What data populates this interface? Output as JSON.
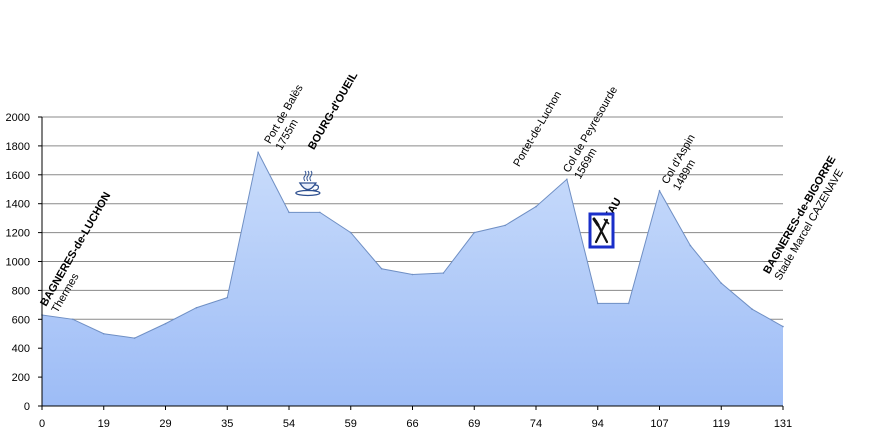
{
  "chart_data": {
    "type": "area",
    "title": "",
    "xlabel": "",
    "ylabel": "",
    "ylim": [
      0,
      2000
    ],
    "y_ticks": [
      "0",
      "200",
      "400",
      "600",
      "800",
      "1000",
      "1200",
      "1400",
      "1600",
      "1800",
      "2000"
    ],
    "x_tick_labels": [
      "0",
      "19",
      "29",
      "35",
      "54",
      "59",
      "66",
      "69",
      "74",
      "94",
      "107",
      "119",
      "131"
    ],
    "grid": "horizontal",
    "legend": "none",
    "fill_color_top": "#c9dcfb",
    "fill_color_bottom": "#9dbcf6",
    "line_color": "#6f8fc4",
    "series": [
      {
        "values": [
          630,
          600,
          500,
          470,
          570,
          680,
          750,
          1755,
          1340,
          1340,
          1200,
          950,
          910,
          920,
          1200,
          1250,
          1380,
          1569,
          710,
          710,
          1489,
          1110,
          850,
          670,
          550
        ]
      }
    ],
    "annotations": [
      {
        "lines": [
          "BAGNERES-de-LUCHON",
          "Thermes"
        ],
        "bold_first": true,
        "at_point": 0
      },
      {
        "lines": [
          "Port de Balès",
          "1755m"
        ],
        "bold_first": false,
        "at_point": 7
      },
      {
        "lines": [
          "BOURG-d'OUEIL"
        ],
        "bold_first": true,
        "at_point": 9,
        "icon": "coffee-cup-icon"
      },
      {
        "lines": [
          "Portet-de-Luchon"
        ],
        "bold_first": false,
        "at_point": 15
      },
      {
        "lines": [
          "Col de Peyresourde",
          "1569m"
        ],
        "bold_first": false,
        "at_point": 17
      },
      {
        "lines": [
          "ARREAU"
        ],
        "bold_first": true,
        "at_point": 18,
        "icon": "fork-knife-icon"
      },
      {
        "lines": [
          "Col d'Aspin",
          "1489m"
        ],
        "bold_first": false,
        "at_point": 20
      },
      {
        "lines": [
          "BAGNERES-de-BIGORRE",
          "Stade Marcel CAZENAVE"
        ],
        "bold_first": true,
        "at_point": 24
      }
    ]
  }
}
